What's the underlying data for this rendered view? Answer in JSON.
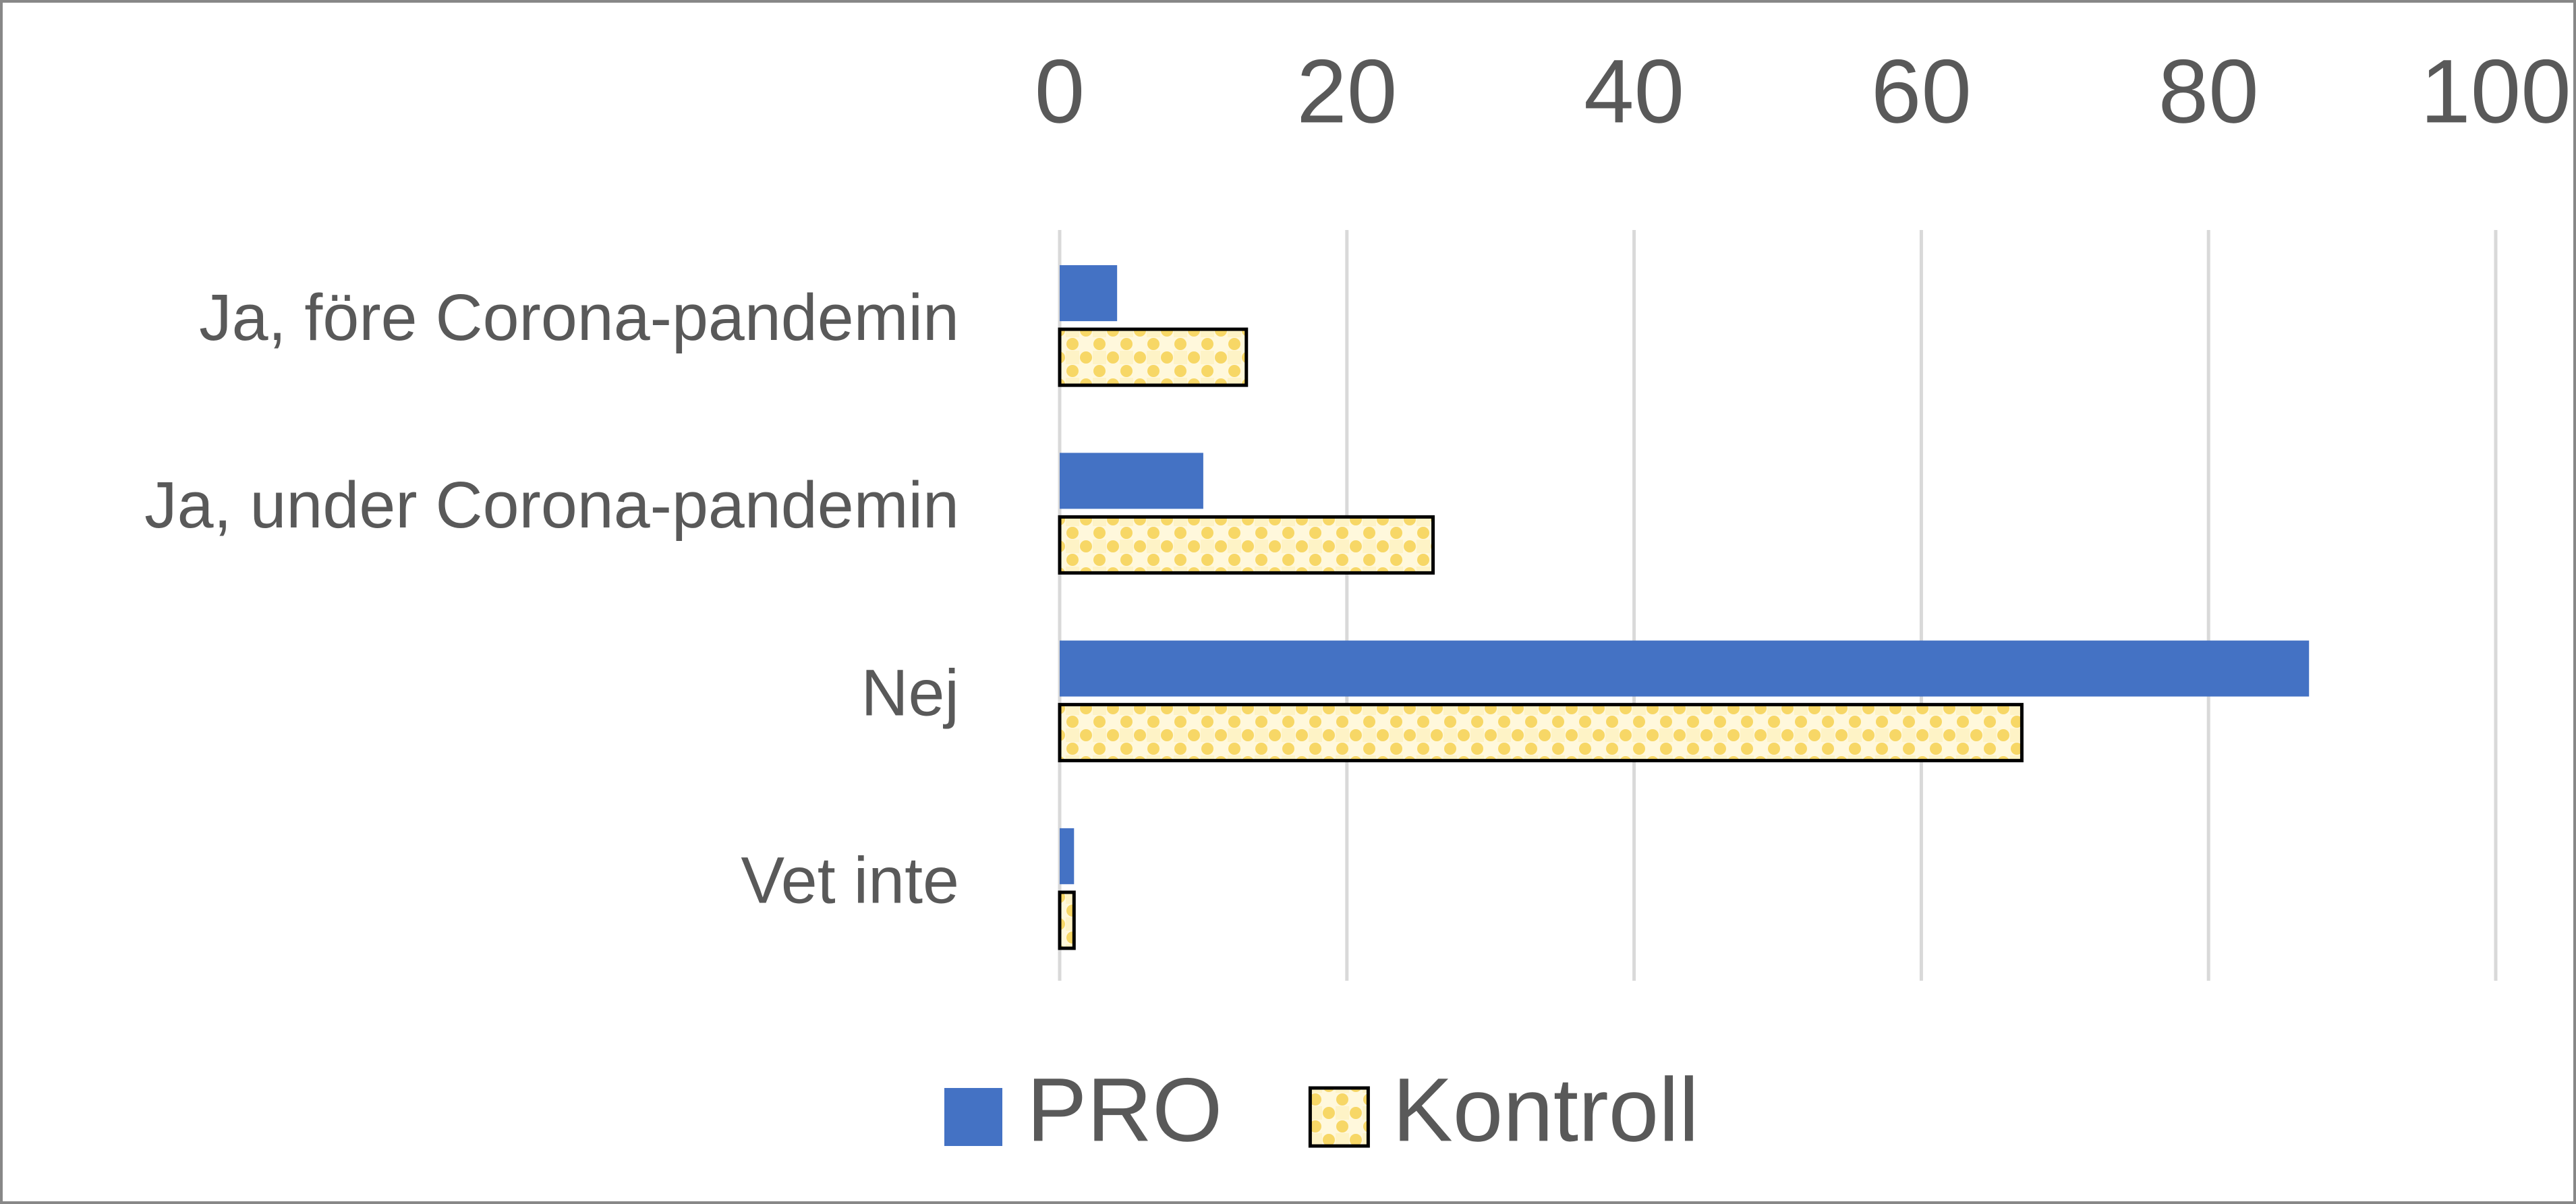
{
  "chart_data": {
    "type": "hbar",
    "categories": [
      "Ja, före Corona-pandemin",
      "Ja, under Corona-pandemin",
      "Nej",
      "Vet inte"
    ],
    "series": [
      {
        "name": "PRO",
        "color": "#4472c4",
        "values": [
          4,
          10,
          87,
          1
        ]
      },
      {
        "name": "Kontroll",
        "color": "#f7d766",
        "values": [
          13,
          26,
          67,
          1
        ]
      }
    ],
    "xlim": [
      0,
      100
    ],
    "xticks": [
      0,
      20,
      40,
      60,
      80,
      100
    ],
    "grid": true,
    "legend": "bottom"
  }
}
